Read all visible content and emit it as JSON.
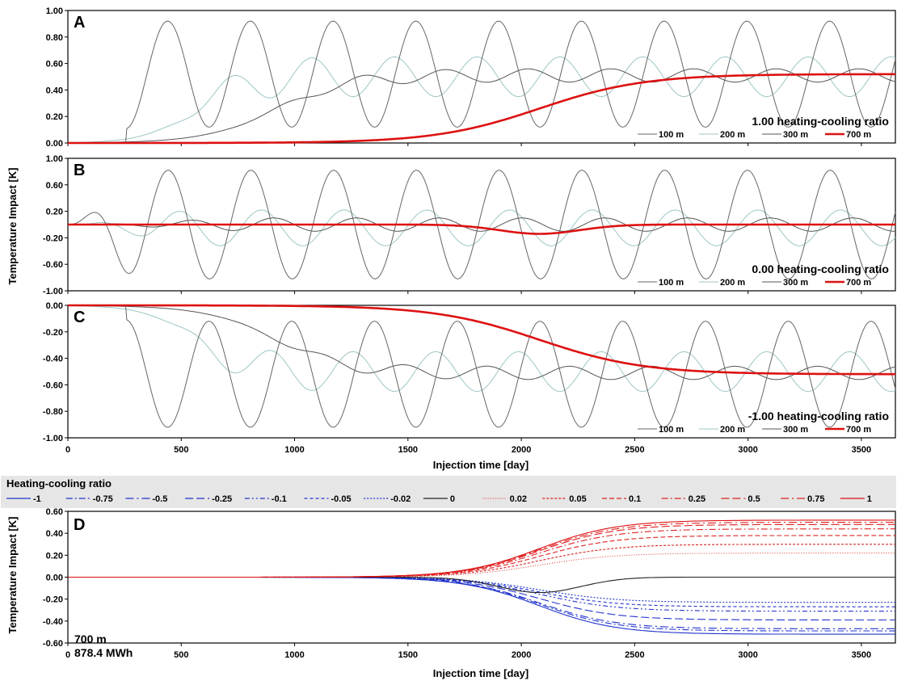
{
  "figure": {
    "ylabel_top": "Temperature Impact [K]",
    "ylabel_bottom": "Temperature Impact [K]",
    "xlabel_top": "Injection time [day]",
    "xlabel_bottom": "Injection time [day]",
    "legend_title": "Heating-cooling ratio",
    "annotation_depth": "700 m",
    "annotation_energy": "878.4 MWh"
  },
  "chart_data": [
    {
      "id": "A",
      "type": "line",
      "panel_letter": "A",
      "annotation": "1.00 heating-cooling ratio",
      "xlim": [
        0,
        3650
      ],
      "ylim": [
        0,
        1.0
      ],
      "yticks": [
        "0.00",
        "0.20",
        "0.40",
        "0.60",
        "0.80",
        "1.00"
      ],
      "yticks_values": [
        0,
        0.2,
        0.4,
        0.6,
        0.8,
        1.0
      ],
      "series": [
        {
          "name": "100 m",
          "color": "#666666",
          "model": {
            "sign": 1,
            "mean": 0.52,
            "amp": 0.4,
            "onset": 250,
            "width": 55
          }
        },
        {
          "name": "200 m",
          "color": "#9fc5c5",
          "model": {
            "sign": 1,
            "mean": 0.5,
            "amp": 0.15,
            "onset": 560,
            "width": 110
          }
        },
        {
          "name": "300 m",
          "color": "#555555",
          "model": {
            "sign": 1,
            "mean": 0.51,
            "amp": 0.05,
            "onset": 920,
            "width": 160
          }
        },
        {
          "name": "700 m",
          "color": "#dd1111",
          "model": {
            "sign": 1,
            "mean": 0.52,
            "amp": 0.0,
            "onset": 2080,
            "width": 230
          }
        }
      ]
    },
    {
      "id": "B",
      "type": "line",
      "panel_letter": "B",
      "annotation": "0.00 heating-cooling ratio",
      "xlim": [
        0,
        3650
      ],
      "ylim": [
        -1.0,
        1.0
      ],
      "yticks": [
        "-1.00",
        "-0.60",
        "-0.20",
        "0.20",
        "0.60",
        "1.00"
      ],
      "yticks_values": [
        -1.0,
        -0.6,
        -0.2,
        0.2,
        0.6,
        1.0
      ],
      "series": [
        {
          "name": "100 m",
          "color": "#666666",
          "model": {
            "kind": "wave",
            "amp": 0.82,
            "ramp": 330,
            "phase": 0
          }
        },
        {
          "name": "200 m",
          "color": "#9fc5c5",
          "model": {
            "kind": "wave",
            "amp": 0.27,
            "ramp": 600,
            "phase": 0.9
          }
        },
        {
          "name": "300 m",
          "color": "#555555",
          "model": {
            "kind": "wave",
            "amp": 0.1,
            "ramp": 900,
            "phase": 1.7
          }
        },
        {
          "name": "700 m",
          "color": "#dd1111",
          "model": {
            "kind": "dip",
            "depth": -0.14,
            "center": 2080,
            "width": 250
          }
        }
      ]
    },
    {
      "id": "C",
      "type": "line",
      "panel_letter": "C",
      "annotation": "-1.00 heating-cooling ratio",
      "xlim": [
        0,
        3650
      ],
      "ylim": [
        -1.0,
        0
      ],
      "yticks": [
        "-1.00",
        "-0.80",
        "-0.60",
        "-0.40",
        "-0.20",
        "0.00"
      ],
      "yticks_values": [
        -1.0,
        -0.8,
        -0.6,
        -0.4,
        -0.2,
        0
      ],
      "series": [
        {
          "name": "100 m",
          "color": "#666666",
          "model": {
            "sign": -1,
            "mean": 0.52,
            "amp": 0.4,
            "onset": 250,
            "width": 55
          }
        },
        {
          "name": "200 m",
          "color": "#9fc5c5",
          "model": {
            "sign": -1,
            "mean": 0.5,
            "amp": 0.15,
            "onset": 560,
            "width": 110
          }
        },
        {
          "name": "300 m",
          "color": "#555555",
          "model": {
            "sign": -1,
            "mean": 0.51,
            "amp": 0.05,
            "onset": 920,
            "width": 160
          }
        },
        {
          "name": "700 m",
          "color": "#dd1111",
          "model": {
            "sign": -1,
            "mean": 0.52,
            "amp": 0.0,
            "onset": 2080,
            "width": 230
          }
        }
      ]
    },
    {
      "id": "D",
      "type": "line",
      "panel_letter": "D",
      "xlim": [
        0,
        3650
      ],
      "ylim": [
        -0.6,
        0.6
      ],
      "yticks": [
        "-0.60",
        "-0.40",
        "-0.20",
        "0.00",
        "0.20",
        "0.40",
        "0.60"
      ],
      "yticks_values": [
        -0.6,
        -0.4,
        -0.2,
        0,
        0.2,
        0.4,
        0.6
      ],
      "xticks": [
        "0",
        "500",
        "1000",
        "1500",
        "2000",
        "2500",
        "3000",
        "3500"
      ],
      "xticks_values": [
        0,
        500,
        1000,
        1500,
        2000,
        2500,
        3000,
        3500
      ],
      "series": [
        {
          "name": "-1",
          "color": "#2233cc",
          "dash": "",
          "final": -0.52
        },
        {
          "name": "-0.75",
          "color": "#2233cc",
          "dash": "8,3,2,3",
          "final": -0.49
        },
        {
          "name": "-0.5",
          "color": "#2233cc",
          "dash": "10,4,2,4",
          "final": -0.47
        },
        {
          "name": "-0.25",
          "color": "#2233cc",
          "dash": "10,4",
          "final": -0.39
        },
        {
          "name": "-0.1",
          "color": "#2233cc",
          "dash": "6,3,2,3,2,3",
          "final": -0.31
        },
        {
          "name": "-0.05",
          "color": "#2233cc",
          "dash": "4,3",
          "final": -0.27
        },
        {
          "name": "-0.02",
          "color": "#2233cc",
          "dash": "2,2",
          "final": -0.23
        },
        {
          "name": "0",
          "color": "#222222",
          "dash": "",
          "final": 0.0,
          "dip": -0.14
        },
        {
          "name": "0.02",
          "color": "#e04040",
          "dash": "1,2",
          "final": 0.22
        },
        {
          "name": "0.05",
          "color": "#dd2222",
          "dash": "3,2",
          "final": 0.3
        },
        {
          "name": "0.1",
          "color": "#dd2222",
          "dash": "6,3",
          "final": 0.38
        },
        {
          "name": "0.25",
          "color": "#dd2222",
          "dash": "8,3,2,3",
          "final": 0.44
        },
        {
          "name": "0.5",
          "color": "#dd2222",
          "dash": "10,4",
          "final": 0.48
        },
        {
          "name": "0.75",
          "color": "#dd2222",
          "dash": "10,4,2,4",
          "final": 0.5
        },
        {
          "name": "1",
          "color": "#dd1111",
          "dash": "",
          "final": 0.52
        }
      ]
    }
  ]
}
